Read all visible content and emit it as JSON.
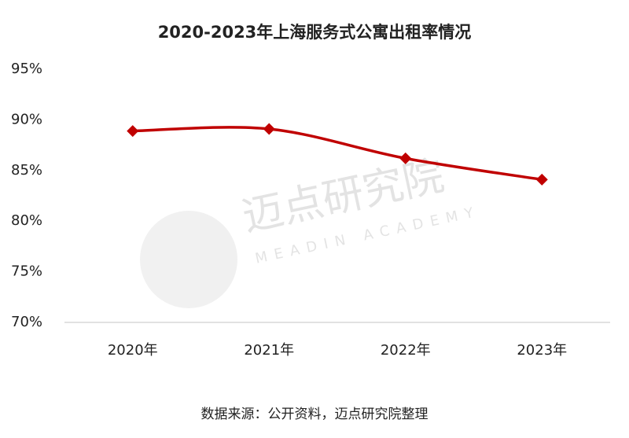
{
  "chart_data": {
    "type": "line",
    "title": "2020-2023年上海服务式公寓出租率情况",
    "categories": [
      "2020年",
      "2021年",
      "2022年",
      "2023年"
    ],
    "series": [
      {
        "name": "出租率",
        "color": "#c00000",
        "values": [
          88.9,
          89.1,
          86.2,
          84.1
        ]
      }
    ],
    "ylim": [
      70,
      95
    ],
    "yticks": [
      {
        "value": 70,
        "label": "70%"
      },
      {
        "value": 75,
        "label": "75%"
      },
      {
        "value": 80,
        "label": "80%"
      },
      {
        "value": 85,
        "label": "85%"
      },
      {
        "value": 90,
        "label": "90%"
      },
      {
        "value": 95,
        "label": "95%"
      }
    ],
    "grid": false,
    "smooth": true,
    "source": "数据来源：公开资料，迈点研究院整理",
    "watermark": {
      "text": "迈点研究院",
      "subtext": "MEADIN ACADEMY"
    }
  }
}
